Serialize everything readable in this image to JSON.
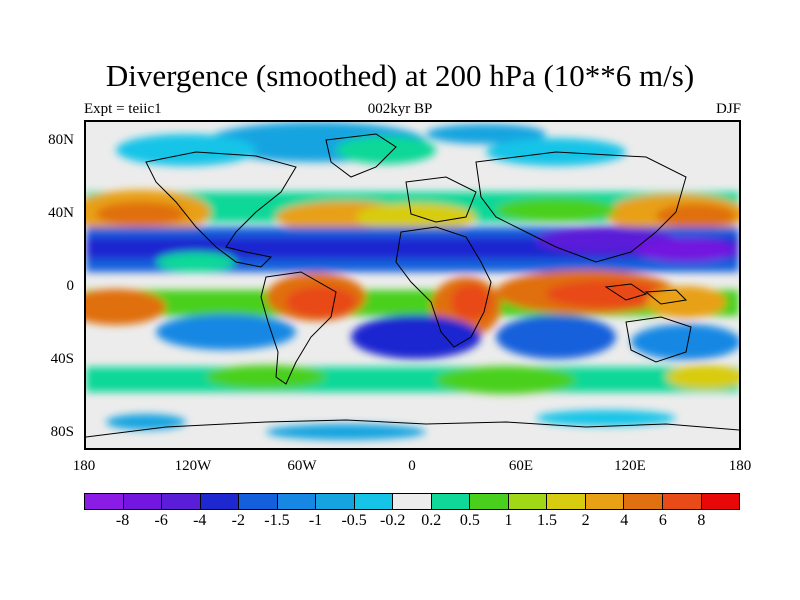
{
  "title": "Divergence (smoothed) at 200 hPa (10**6 m/s)",
  "expt_label": "Expt = teiic1",
  "time_label": "002kyr BP",
  "season_label": "DJF",
  "lat_labels": [
    "80N",
    "40N",
    "0",
    "40S",
    "80S"
  ],
  "lon_labels": [
    "180",
    "120W",
    "60W",
    "0",
    "60E",
    "120E",
    "180"
  ],
  "colorbar": {
    "colors": [
      "#8a1ce6",
      "#7316e0",
      "#5a1ed8",
      "#1e28d0",
      "#1460dc",
      "#1688e4",
      "#16a4e0",
      "#16c4e8",
      "#ececec",
      "#10d898",
      "#48d01c",
      "#a0d818",
      "#d8cc10",
      "#e8a014",
      "#e07010",
      "#e84a18",
      "#e80808"
    ],
    "labels": [
      "-8",
      "-6",
      "-4",
      "-2",
      "-1.5",
      "-1",
      "-0.5",
      "-0.2",
      "0.2",
      "0.5",
      "1",
      "1.5",
      "2",
      "4",
      "6",
      "8"
    ]
  },
  "map": {
    "region": "global",
    "projection": "cylindrical equidistant",
    "lon_range": [
      -180,
      180
    ],
    "lat_range": [
      -90,
      90
    ],
    "background_color": "#ececec",
    "coastline_color": "#000000"
  }
}
